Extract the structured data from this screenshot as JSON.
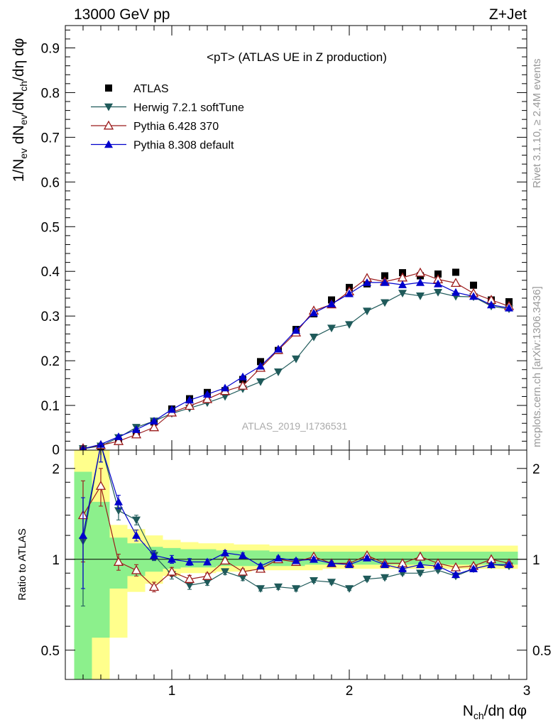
{
  "header": {
    "left": "13000 GeV pp",
    "right": "Z+Jet"
  },
  "side_texts": {
    "rivet": "Rivet 3.1.10, ≥ 2.4M events",
    "mcplots": "mcplots.cern.ch [arXiv:1306.3436]"
  },
  "chart_data": [
    {
      "type": "scatter",
      "title": "<pT> (ATLAS UE in Z production)",
      "watermark": "ATLAS_2019_I1736531",
      "ylabel": "1/N_ev dN_ev/dN_ch/dη dφ",
      "xlim": [
        0.4,
        3.0
      ],
      "ylim": [
        0,
        0.95
      ],
      "yticks": [
        0.1,
        0.2,
        0.3,
        0.4,
        0.5,
        0.6,
        0.7,
        0.8,
        0.9
      ],
      "ytick_labels": [
        "0.1",
        "0.2",
        "0.3",
        "0.4",
        "0.5",
        "0.6",
        "0.7",
        "0.8",
        "0.9"
      ],
      "zero_label": "0",
      "legend_position": "top-left",
      "series": [
        {
          "name": "ATLAS",
          "marker": "square",
          "color": "#000000",
          "x": [
            0.5,
            0.6,
            0.7,
            0.8,
            0.9,
            1.0,
            1.1,
            1.2,
            1.3,
            1.4,
            1.5,
            1.6,
            1.7,
            1.8,
            1.9,
            2.0,
            2.1,
            2.2,
            2.3,
            2.4,
            2.5,
            2.6,
            2.7,
            2.8,
            2.9
          ],
          "y": [
            0.003,
            0.008,
            0.02,
            0.038,
            0.063,
            0.092,
            0.115,
            0.129,
            0.133,
            0.158,
            0.198,
            0.223,
            0.27,
            0.305,
            0.336,
            0.364,
            0.372,
            0.39,
            0.397,
            0.39,
            0.394,
            0.398,
            0.369,
            0.336,
            0.332
          ]
        },
        {
          "name": "Herwig 7.2.1 softTune",
          "marker": "triangle-down",
          "color": "#1f5a5a",
          "x": [
            0.5,
            0.6,
            0.7,
            0.8,
            0.9,
            1.0,
            1.1,
            1.2,
            1.3,
            1.4,
            1.5,
            1.6,
            1.7,
            1.8,
            1.9,
            2.0,
            2.1,
            2.2,
            2.3,
            2.4,
            2.5,
            2.6,
            2.7,
            2.8,
            2.9
          ],
          "y": [
            0.003,
            0.009,
            0.028,
            0.051,
            0.065,
            0.082,
            0.094,
            0.106,
            0.12,
            0.137,
            0.153,
            0.175,
            0.204,
            0.253,
            0.273,
            0.281,
            0.311,
            0.33,
            0.351,
            0.345,
            0.353,
            0.344,
            0.343,
            0.322,
            0.316
          ]
        },
        {
          "name": "Pythia 6.428 370",
          "marker": "triangle-up-open",
          "color": "#9b1b1b",
          "x": [
            0.5,
            0.6,
            0.7,
            0.8,
            0.9,
            1.0,
            1.1,
            1.2,
            1.3,
            1.4,
            1.5,
            1.6,
            1.7,
            1.8,
            1.9,
            2.0,
            2.1,
            2.2,
            2.3,
            2.4,
            2.5,
            2.6,
            2.7,
            2.8,
            2.9
          ],
          "y": [
            0.004,
            0.011,
            0.02,
            0.035,
            0.051,
            0.084,
            0.099,
            0.114,
            0.132,
            0.144,
            0.184,
            0.224,
            0.263,
            0.312,
            0.326,
            0.355,
            0.385,
            0.377,
            0.386,
            0.397,
            0.382,
            0.374,
            0.351,
            0.336,
            0.322
          ]
        },
        {
          "name": "Pythia 8.308 default",
          "marker": "triangle-up",
          "color": "#0000cc",
          "x": [
            0.5,
            0.6,
            0.7,
            0.8,
            0.9,
            1.0,
            1.1,
            1.2,
            1.3,
            1.4,
            1.5,
            1.6,
            1.7,
            1.8,
            1.9,
            2.0,
            2.1,
            2.2,
            2.3,
            2.4,
            2.5,
            2.6,
            2.7,
            2.8,
            2.9
          ],
          "y": [
            0.003,
            0.013,
            0.03,
            0.046,
            0.065,
            0.091,
            0.112,
            0.125,
            0.139,
            0.164,
            0.188,
            0.226,
            0.268,
            0.307,
            0.327,
            0.35,
            0.375,
            0.375,
            0.37,
            0.375,
            0.372,
            0.353,
            0.344,
            0.325,
            0.318
          ]
        }
      ]
    },
    {
      "type": "scatter",
      "ylabel": "Ratio to ATLAS",
      "xlabel": "N_ch/dη dφ",
      "xlim": [
        0.4,
        3.0
      ],
      "ylim": [
        0.4,
        2.3
      ],
      "log_y": true,
      "xticks": [
        1,
        2,
        3
      ],
      "xtick_labels": [
        "1",
        "2",
        "3"
      ],
      "yticks": [
        0.5,
        1,
        2
      ],
      "ytick_labels": [
        "0.5",
        "1",
        "2"
      ],
      "bands": {
        "x_edges": [
          0.45,
          0.55,
          0.65,
          0.75,
          0.85,
          0.95,
          1.05,
          1.15,
          1.25,
          1.35,
          1.45,
          1.55,
          1.65,
          1.75,
          1.85,
          1.95,
          2.05,
          2.15,
          2.25,
          2.35,
          2.45,
          2.55,
          2.65,
          2.75,
          2.85,
          2.95
        ],
        "yellow": [
          [
            0.3,
            2.5
          ],
          [
            0.3,
            2.5
          ],
          [
            0.55,
            1.3
          ],
          [
            0.78,
            1.26
          ],
          [
            0.83,
            1.2
          ],
          [
            0.88,
            1.16
          ],
          [
            0.9,
            1.14
          ],
          [
            0.9,
            1.13
          ],
          [
            0.91,
            1.13
          ],
          [
            0.91,
            1.12
          ],
          [
            0.92,
            1.12
          ],
          [
            0.92,
            1.11
          ],
          [
            0.92,
            1.11
          ],
          [
            0.92,
            1.11
          ],
          [
            0.93,
            1.11
          ],
          [
            0.93,
            1.11
          ],
          [
            0.93,
            1.11
          ],
          [
            0.93,
            1.11
          ],
          [
            0.93,
            1.11
          ],
          [
            0.93,
            1.11
          ],
          [
            0.93,
            1.11
          ],
          [
            0.93,
            1.11
          ],
          [
            0.93,
            1.11
          ],
          [
            0.93,
            1.11
          ],
          [
            0.93,
            1.11
          ]
        ],
        "green": [
          [
            0.3,
            1.95
          ],
          [
            0.55,
            1.55
          ],
          [
            0.8,
            1.18
          ],
          [
            0.88,
            1.13
          ],
          [
            0.91,
            1.1
          ],
          [
            0.93,
            1.09
          ],
          [
            0.94,
            1.08
          ],
          [
            0.94,
            1.08
          ],
          [
            0.95,
            1.07
          ],
          [
            0.95,
            1.07
          ],
          [
            0.95,
            1.07
          ],
          [
            0.95,
            1.06
          ],
          [
            0.95,
            1.06
          ],
          [
            0.96,
            1.06
          ],
          [
            0.96,
            1.06
          ],
          [
            0.96,
            1.06
          ],
          [
            0.96,
            1.06
          ],
          [
            0.96,
            1.06
          ],
          [
            0.96,
            1.06
          ],
          [
            0.96,
            1.06
          ],
          [
            0.96,
            1.06
          ],
          [
            0.96,
            1.06
          ],
          [
            0.96,
            1.06
          ],
          [
            0.96,
            1.06
          ],
          [
            0.96,
            1.06
          ]
        ]
      },
      "series": [
        {
          "name": "Herwig 7.2.1 softTune",
          "marker": "triangle-down",
          "color": "#1f5a5a",
          "x": [
            0.5,
            0.6,
            0.7,
            0.8,
            0.9,
            1.0,
            1.1,
            1.2,
            1.3,
            1.4,
            1.5,
            1.6,
            1.7,
            1.8,
            1.9,
            2.0,
            2.1,
            2.2,
            2.3,
            2.4,
            2.5,
            2.6,
            2.7,
            2.8,
            2.9
          ],
          "y": [
            1.15,
            2.4,
            1.45,
            1.35,
            1.03,
            0.89,
            0.82,
            0.84,
            0.91,
            0.87,
            0.8,
            0.81,
            0.8,
            0.85,
            0.84,
            0.8,
            0.86,
            0.87,
            0.9,
            0.9,
            0.92,
            0.88,
            0.93,
            0.96,
            0.95
          ],
          "err": [
            0.45,
            0.3,
            0.1,
            0.05,
            0.04,
            0.03,
            0.025,
            0.02,
            0.02,
            0.02,
            0.015,
            0.015,
            0.015,
            0.012,
            0.012,
            0.012,
            0.012,
            0.012,
            0.012,
            0.012,
            0.012,
            0.012,
            0.012,
            0.012,
            0.012
          ]
        },
        {
          "name": "Pythia 6.428 370",
          "marker": "triangle-up-open",
          "color": "#9b1b1b",
          "x": [
            0.5,
            0.6,
            0.7,
            0.8,
            0.9,
            1.0,
            1.1,
            1.2,
            1.3,
            1.4,
            1.5,
            1.6,
            1.7,
            1.8,
            1.9,
            2.0,
            2.1,
            2.2,
            2.3,
            2.4,
            2.5,
            2.6,
            2.7,
            2.8,
            2.9
          ],
          "y": [
            1.4,
            1.75,
            0.98,
            0.92,
            0.81,
            0.91,
            0.86,
            0.88,
            0.99,
            0.91,
            0.93,
            1.0,
            0.98,
            1.02,
            0.97,
            0.97,
            1.03,
            0.97,
            0.97,
            1.02,
            0.97,
            0.94,
            0.95,
            1.0,
            0.97
          ],
          "err": [
            0.42,
            0.25,
            0.06,
            0.04,
            0.03,
            0.03,
            0.025,
            0.02,
            0.02,
            0.02,
            0.015,
            0.015,
            0.015,
            0.012,
            0.012,
            0.012,
            0.012,
            0.012,
            0.012,
            0.012,
            0.012,
            0.012,
            0.012,
            0.012,
            0.012
          ]
        },
        {
          "name": "Pythia 8.308 default",
          "marker": "triangle-up",
          "color": "#0000cc",
          "x": [
            0.5,
            0.6,
            0.7,
            0.8,
            0.9,
            1.0,
            1.1,
            1.2,
            1.3,
            1.4,
            1.5,
            1.6,
            1.7,
            1.8,
            1.9,
            2.0,
            2.1,
            2.2,
            2.3,
            2.4,
            2.5,
            2.6,
            2.7,
            2.8,
            2.9
          ],
          "y": [
            1.2,
            2.4,
            1.55,
            1.2,
            1.03,
            1.0,
            0.98,
            0.98,
            1.05,
            1.03,
            0.95,
            1.01,
            0.99,
            1.0,
            0.97,
            0.96,
            1.01,
            0.96,
            0.93,
            0.96,
            0.95,
            0.89,
            0.93,
            0.96,
            0.96
          ],
          "err": [
            0.4,
            0.3,
            0.08,
            0.05,
            0.035,
            0.03,
            0.025,
            0.02,
            0.02,
            0.02,
            0.015,
            0.015,
            0.015,
            0.012,
            0.012,
            0.012,
            0.012,
            0.012,
            0.012,
            0.012,
            0.012,
            0.012,
            0.012,
            0.012,
            0.012
          ]
        }
      ]
    }
  ]
}
